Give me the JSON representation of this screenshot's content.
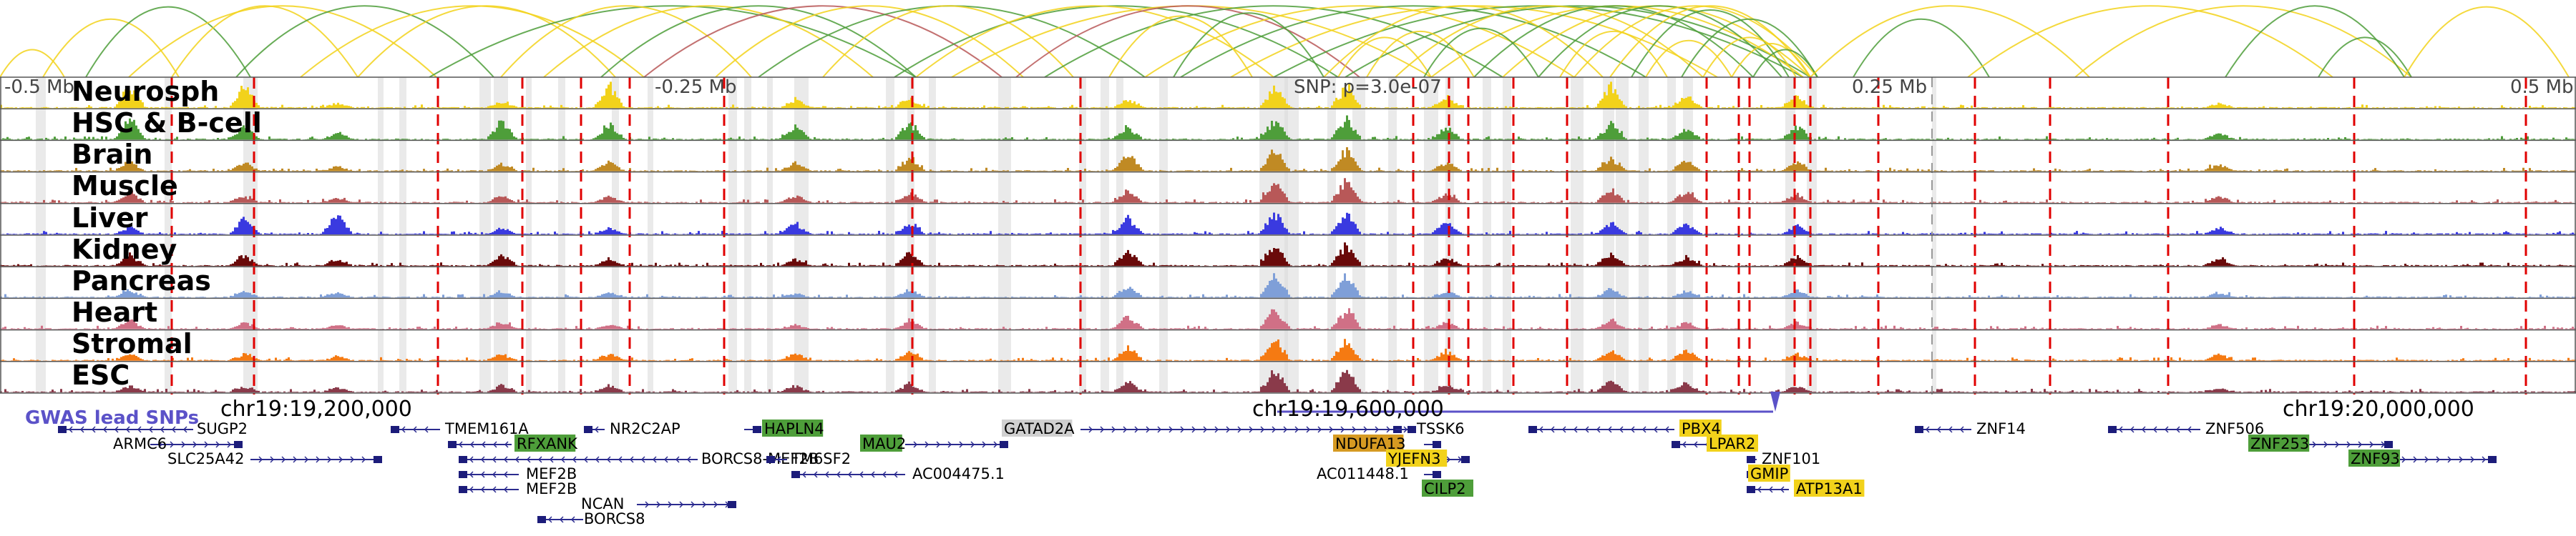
{
  "axis": {
    "left_label": "-0.5 Mb",
    "mid_left_label": "-0.25 Mb",
    "snp_label": "SNP: p=3.0e-07",
    "mid_right_label": "0.25 Mb",
    "right_label": "0.5 Mb"
  },
  "coordinates": [
    "chr19:19,200,000",
    "chr19:19,600,000",
    "chr19:20,000,000"
  ],
  "gwas_label": "GWAS lead SNPs",
  "tracks": [
    {
      "name": "Neurosph",
      "color": "#f2d21b"
    },
    {
      "name": "HSC & B-cell",
      "color": "#4e9e3a"
    },
    {
      "name": "Brain",
      "color": "#c08a24"
    },
    {
      "name": "Muscle",
      "color": "#b85858"
    },
    {
      "name": "Liver",
      "color": "#3a3ae0"
    },
    {
      "name": "Kidney",
      "color": "#6a0a0a"
    },
    {
      "name": "Pancreas",
      "color": "#7f9fd8"
    },
    {
      "name": "Heart",
      "color": "#d07086"
    },
    {
      "name": "Stromal",
      "color": "#f57a12"
    },
    {
      "name": "ESC",
      "color": "#8a3a4a"
    }
  ],
  "genes": [
    {
      "name": "SUGP2",
      "highlight": ""
    },
    {
      "name": "ARMC6",
      "highlight": ""
    },
    {
      "name": "SLC25A42",
      "highlight": ""
    },
    {
      "name": "TMEM161A",
      "highlight": ""
    },
    {
      "name": "RFXANK",
      "highlight": "green"
    },
    {
      "name": "NR2C2AP",
      "highlight": ""
    },
    {
      "name": "BORCS8-MEF2B",
      "highlight": ""
    },
    {
      "name": "MEF2B",
      "highlight": ""
    },
    {
      "name": "MEF2B",
      "highlight": ""
    },
    {
      "name": "NCAN",
      "highlight": ""
    },
    {
      "name": "BORCS8",
      "highlight": ""
    },
    {
      "name": "HAPLN4",
      "highlight": "green"
    },
    {
      "name": "TM6SF2",
      "highlight": ""
    },
    {
      "name": "MAU2",
      "highlight": "green"
    },
    {
      "name": "AC004475.1",
      "highlight": ""
    },
    {
      "name": "GATAD2A",
      "highlight": "grey"
    },
    {
      "name": "TSSK6",
      "highlight": ""
    },
    {
      "name": "NDUFA13",
      "highlight": "orange"
    },
    {
      "name": "YJEFN3",
      "highlight": "yellow"
    },
    {
      "name": "AC011448.1",
      "highlight": ""
    },
    {
      "name": "CILP2",
      "highlight": "green"
    },
    {
      "name": "PBX4",
      "highlight": "yellow"
    },
    {
      "name": "LPAR2",
      "highlight": "yellow"
    },
    {
      "name": "ZNF101",
      "highlight": ""
    },
    {
      "name": "GMIP",
      "highlight": "yellow"
    },
    {
      "name": "ATP13A1",
      "highlight": "yellow"
    },
    {
      "name": "ZNF14",
      "highlight": ""
    },
    {
      "name": "ZNF506",
      "highlight": ""
    },
    {
      "name": "ZNF253",
      "highlight": "green"
    },
    {
      "name": "ZNF93",
      "highlight": "green"
    }
  ],
  "highlight_colors": {
    "green": "#4e9e3a",
    "grey": "#d0d0d0",
    "orange": "#d69a22",
    "yellow": "#f2d21b"
  },
  "colors": {
    "snp_line": "#e00000",
    "gene_line": "#2b2b8f",
    "gwas": "#5b52c8",
    "arc_yellow": "#f2d21b",
    "arc_green": "#4e9e3a",
    "arc_red": "#b85858"
  }
}
